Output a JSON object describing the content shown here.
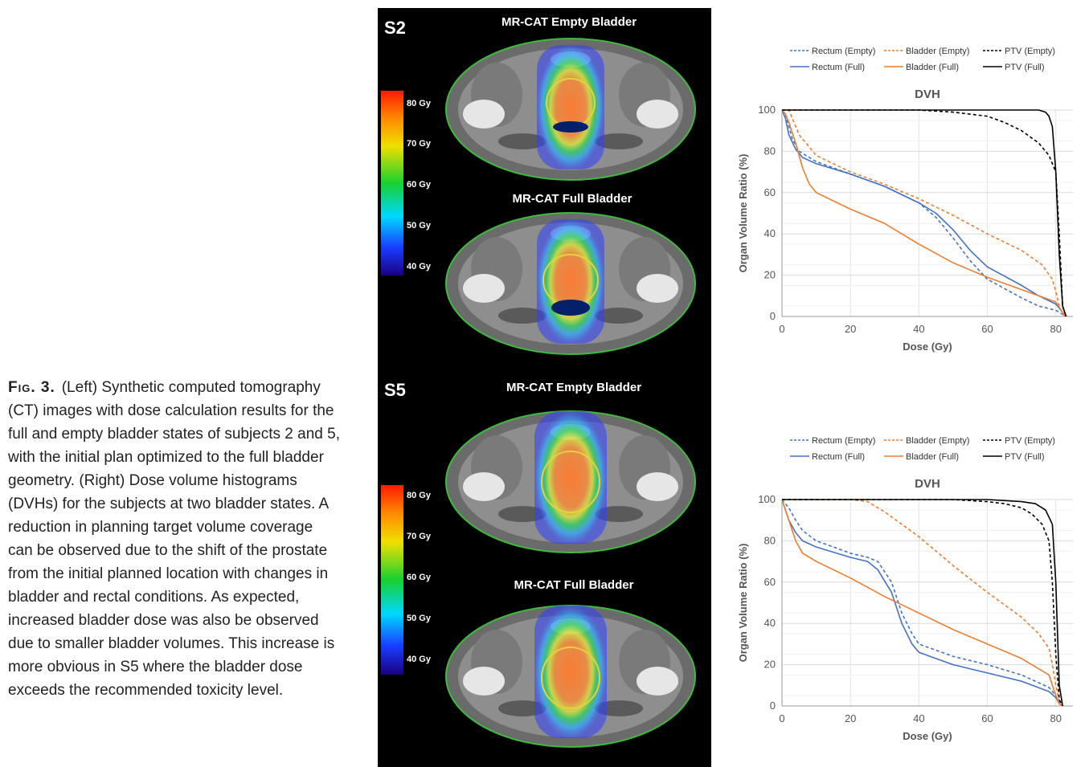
{
  "caption": {
    "label": "Fig. 3.",
    "text": "(Left) Synthetic computed tomography (CT) images with dose calculation results for the full and empty bladder states of subjects 2 and 5, with the initial plan optimized to the full bladder geometry. (Right) Dose volume histograms (DVHs) for the subjects at two bladder states. A reduction in planning target volume coverage can be observed due to the shift of the prostate from the initial planned location with changes in bladder and rectal conditions. As expected, increased bladder dose was also be observed due to smaller bladder volumes. This increase is more obvious in S5 where the bladder dose exceeds the recommended toxicity level."
  },
  "ct_panel": {
    "subjects": [
      {
        "label": "S2",
        "empty_title": "MR-CAT Empty Bladder",
        "full_title": "MR-CAT Full Bladder",
        "colorbar_ticks": [
          "80 Gy",
          "70 Gy",
          "60 Gy",
          "50 Gy",
          "40 Gy"
        ]
      },
      {
        "label": "S5",
        "empty_title": "MR-CAT Empty Bladder",
        "full_title": "MR-CAT Full Bladder",
        "colorbar_ticks": [
          "80 Gy",
          "70 Gy",
          "60 Gy",
          "50 Gy",
          "40 Gy"
        ]
      }
    ]
  },
  "colors": {
    "rectum": "#4472C4",
    "bladder": "#ED7D31",
    "ptv": "#000000",
    "body_contour": "#3dbb3d",
    "prostate_contour": "#e6d23a"
  },
  "chart_data": [
    {
      "type": "line",
      "title": "DVH",
      "xlabel": "Dose (Gy)",
      "ylabel": "Organ Volume Ratio (%)",
      "xlim": [
        0,
        85
      ],
      "ylim": [
        0,
        100
      ],
      "xticks": [
        0,
        20,
        40,
        60,
        80
      ],
      "yticks": [
        0,
        20,
        40,
        60,
        80,
        100
      ],
      "grid": true,
      "legend": "top",
      "series": [
        {
          "name": "Rectum (Empty)",
          "color": "#4472C4",
          "dash": true,
          "x": [
            0,
            1,
            2,
            3,
            5,
            10,
            20,
            30,
            40,
            45,
            50,
            55,
            60,
            70,
            75,
            80,
            82,
            83
          ],
          "y": [
            100,
            98,
            92,
            86,
            80,
            75,
            69,
            63,
            55,
            48,
            38,
            27,
            18,
            9,
            5,
            3,
            1,
            0
          ]
        },
        {
          "name": "Bladder (Empty)",
          "color": "#ED7D31",
          "dash": true,
          "x": [
            0,
            2,
            3,
            5,
            10,
            20,
            30,
            40,
            50,
            60,
            70,
            76,
            79,
            80,
            81,
            82,
            83
          ],
          "y": [
            100,
            100,
            96,
            88,
            78,
            70,
            64,
            57,
            49,
            40,
            32,
            25,
            18,
            12,
            5,
            1,
            0
          ]
        },
        {
          "name": "PTV (Empty)",
          "color": "#000000",
          "dash": true,
          "x": [
            0,
            40,
            50,
            60,
            65,
            70,
            75,
            78,
            80,
            81,
            82,
            83
          ],
          "y": [
            100,
            100,
            99,
            97,
            94,
            90,
            84,
            78,
            70,
            40,
            5,
            0
          ]
        },
        {
          "name": "Rectum (Full)",
          "color": "#4472C4",
          "dash": false,
          "x": [
            0,
            1,
            2,
            4,
            6,
            10,
            20,
            30,
            40,
            45,
            50,
            55,
            60,
            70,
            75,
            80,
            82,
            83
          ],
          "y": [
            100,
            96,
            88,
            81,
            77,
            74,
            69,
            63,
            55,
            50,
            42,
            32,
            24,
            15,
            10,
            6,
            2,
            0
          ]
        },
        {
          "name": "Bladder (Full)",
          "color": "#ED7D31",
          "dash": false,
          "x": [
            0,
            1,
            2,
            4,
            6,
            8,
            10,
            20,
            30,
            40,
            50,
            60,
            70,
            75,
            80,
            82,
            83
          ],
          "y": [
            100,
            98,
            94,
            84,
            72,
            64,
            60,
            52,
            45,
            35,
            26,
            19,
            13,
            10,
            7,
            2,
            0
          ]
        },
        {
          "name": "PTV (Full)",
          "color": "#000000",
          "dash": false,
          "x": [
            0,
            75,
            77,
            78,
            79,
            80,
            81,
            82,
            83
          ],
          "y": [
            100,
            100,
            99,
            97,
            92,
            70,
            30,
            5,
            0
          ]
        }
      ]
    },
    {
      "type": "line",
      "title": "DVH",
      "xlabel": "Dose (Gy)",
      "ylabel": "Organ Volume Ratio (%)",
      "xlim": [
        0,
        85
      ],
      "ylim": [
        0,
        100
      ],
      "xticks": [
        0,
        20,
        40,
        60,
        80
      ],
      "yticks": [
        0,
        20,
        40,
        60,
        80,
        100
      ],
      "grid": true,
      "legend": "top",
      "series": [
        {
          "name": "Rectum (Empty)",
          "color": "#4472C4",
          "dash": true,
          "x": [
            0,
            2,
            4,
            6,
            10,
            20,
            25,
            28,
            32,
            35,
            38,
            40,
            50,
            60,
            70,
            78,
            80,
            81,
            82
          ],
          "y": [
            100,
            96,
            90,
            85,
            80,
            74,
            72,
            70,
            60,
            45,
            35,
            30,
            24,
            20,
            15,
            9,
            5,
            2,
            0
          ]
        },
        {
          "name": "Bladder (Empty)",
          "color": "#ED7D31",
          "dash": true,
          "x": [
            0,
            20,
            25,
            30,
            40,
            50,
            60,
            70,
            75,
            78,
            79,
            80,
            81,
            82
          ],
          "y": [
            100,
            100,
            99,
            94,
            82,
            68,
            55,
            43,
            35,
            28,
            20,
            10,
            2,
            0
          ]
        },
        {
          "name": "PTV (Empty)",
          "color": "#000000",
          "dash": true,
          "x": [
            0,
            50,
            60,
            65,
            70,
            73,
            76,
            78,
            79,
            80,
            81,
            82
          ],
          "y": [
            100,
            100,
            99,
            98,
            96,
            93,
            88,
            80,
            60,
            25,
            3,
            0
          ]
        },
        {
          "name": "Rectum (Full)",
          "color": "#4472C4",
          "dash": false,
          "x": [
            0,
            2,
            4,
            6,
            10,
            20,
            25,
            28,
            32,
            35,
            38,
            40,
            50,
            60,
            70,
            78,
            80,
            81,
            82
          ],
          "y": [
            100,
            90,
            84,
            80,
            77,
            72,
            70,
            66,
            55,
            40,
            30,
            26,
            20,
            16,
            12,
            7,
            4,
            1,
            0
          ]
        },
        {
          "name": "Bladder (Full)",
          "color": "#ED7D31",
          "dash": false,
          "x": [
            0,
            2,
            4,
            6,
            10,
            20,
            30,
            40,
            50,
            60,
            70,
            75,
            78,
            79,
            80,
            81,
            82
          ],
          "y": [
            100,
            90,
            80,
            74,
            70,
            62,
            53,
            45,
            37,
            30,
            23,
            18,
            15,
            10,
            5,
            1,
            0
          ]
        },
        {
          "name": "PTV (Full)",
          "color": "#000000",
          "dash": false,
          "x": [
            0,
            60,
            70,
            74,
            77,
            79,
            80,
            81,
            82
          ],
          "y": [
            100,
            100,
            99,
            98,
            95,
            88,
            60,
            10,
            0
          ]
        }
      ]
    }
  ]
}
